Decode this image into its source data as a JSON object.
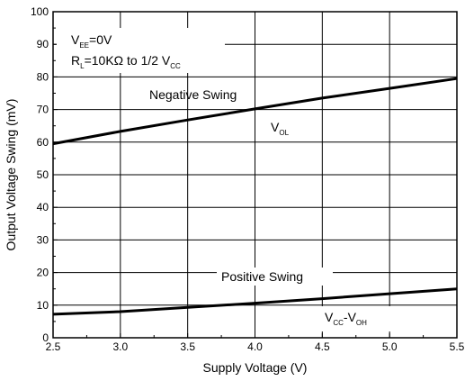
{
  "chart_data": {
    "type": "line",
    "title": "",
    "xlabel": "Supply Voltage (V)",
    "ylabel": "Output Voltage Swing (mV)",
    "xlim": [
      2.5,
      5.5
    ],
    "ylim": [
      0,
      100
    ],
    "xticks": [
      "2.5",
      "3.0",
      "3.5",
      "4.0",
      "4.5",
      "5.0",
      "5.5"
    ],
    "yticks": [
      "0",
      "10",
      "20",
      "30",
      "40",
      "50",
      "60",
      "70",
      "80",
      "90",
      "100"
    ],
    "grid": true,
    "series": [
      {
        "name": "Negative Swing",
        "x": [
          2.5,
          3.0,
          3.5,
          4.0,
          4.5,
          5.0,
          5.5
        ],
        "y": [
          59.5,
          63.3,
          66.8,
          70.2,
          73.5,
          76.5,
          79.5
        ]
      },
      {
        "name": "Positive Swing",
        "x": [
          2.5,
          3.0,
          3.5,
          4.0,
          4.5,
          5.0,
          5.5
        ],
        "y": [
          7.2,
          8.0,
          9.3,
          10.6,
          12.0,
          13.5,
          15.0
        ]
      }
    ],
    "annotations": {
      "vee": {
        "main": "V",
        "sub": "EE",
        "rest": "=0V"
      },
      "rl": {
        "main": "R",
        "sub": "L",
        "rest": "=10KΩ to 1/2 V",
        "sub2": "CC"
      },
      "negative_swing": "Negative Swing",
      "vol": {
        "main": "V",
        "sub": "OL"
      },
      "positive_swing": "Positive Swing",
      "vcc_voh": {
        "main": "V",
        "sub": "CC",
        "mid": "-V",
        "sub2": "OH"
      }
    }
  }
}
